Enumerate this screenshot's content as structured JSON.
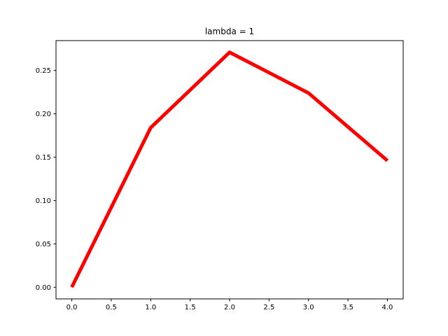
{
  "chart_data": {
    "type": "line",
    "title": "lambda = 1",
    "xlabel": "",
    "ylabel": "",
    "xlim": [
      -0.2,
      4.2
    ],
    "ylim": [
      -0.0135,
      0.2845
    ],
    "x_ticks": [
      0.0,
      0.5,
      1.0,
      1.5,
      2.0,
      2.5,
      3.0,
      3.5,
      4.0
    ],
    "x_tick_labels": [
      "0.0",
      "0.5",
      "1.0",
      "1.5",
      "2.0",
      "2.5",
      "3.0",
      "3.5",
      "4.0"
    ],
    "y_ticks": [
      0.0,
      0.05,
      0.1,
      0.15,
      0.2,
      0.25
    ],
    "y_tick_labels": [
      "0.00",
      "0.05",
      "0.10",
      "0.15",
      "0.20",
      "0.25"
    ],
    "grid": false,
    "legend": "none",
    "series": [
      {
        "color": "#ff0000",
        "x": [
          0,
          1,
          2,
          3,
          4
        ],
        "y": [
          0.0,
          0.184,
          0.271,
          0.224,
          0.146
        ]
      }
    ]
  }
}
